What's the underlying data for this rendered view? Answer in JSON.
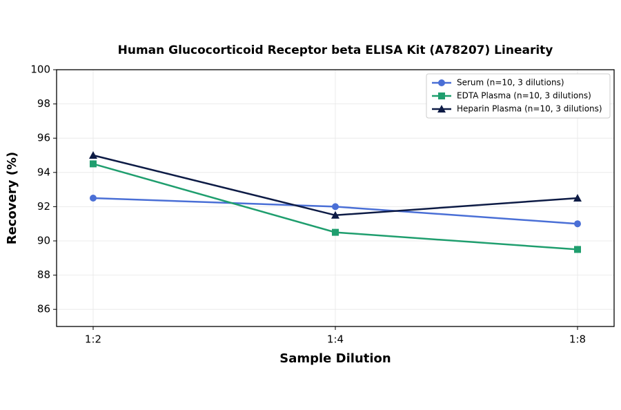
{
  "chart_data": {
    "type": "line",
    "title": "Human Glucocorticoid Receptor beta ELISA Kit (A78207) Linearity",
    "x_label": "Sample Dilution",
    "y_label": "Recovery (%)",
    "categories": [
      "1:2",
      "1:4",
      "1:8"
    ],
    "series": [
      {
        "name": "Serum (n=10, 3 dilutions)",
        "color": "#4a6fd6",
        "marker": "circle",
        "values": [
          92.5,
          92,
          91
        ]
      },
      {
        "name": "EDTA Plasma (n=10, 3 dilutions)",
        "color": "#1f9e6e",
        "marker": "square",
        "values": [
          94.5,
          90.5,
          89.5
        ]
      },
      {
        "name": "Heparin Plasma (n=10, 3 dilutions)",
        "color": "#0d1b45",
        "marker": "triangle",
        "values": [
          95,
          91.5,
          92.5
        ]
      }
    ],
    "ylim": [
      85,
      100
    ],
    "yticks": [
      86,
      88,
      90,
      92,
      94,
      96,
      98,
      100
    ],
    "grid": true,
    "legend": "upper right"
  }
}
